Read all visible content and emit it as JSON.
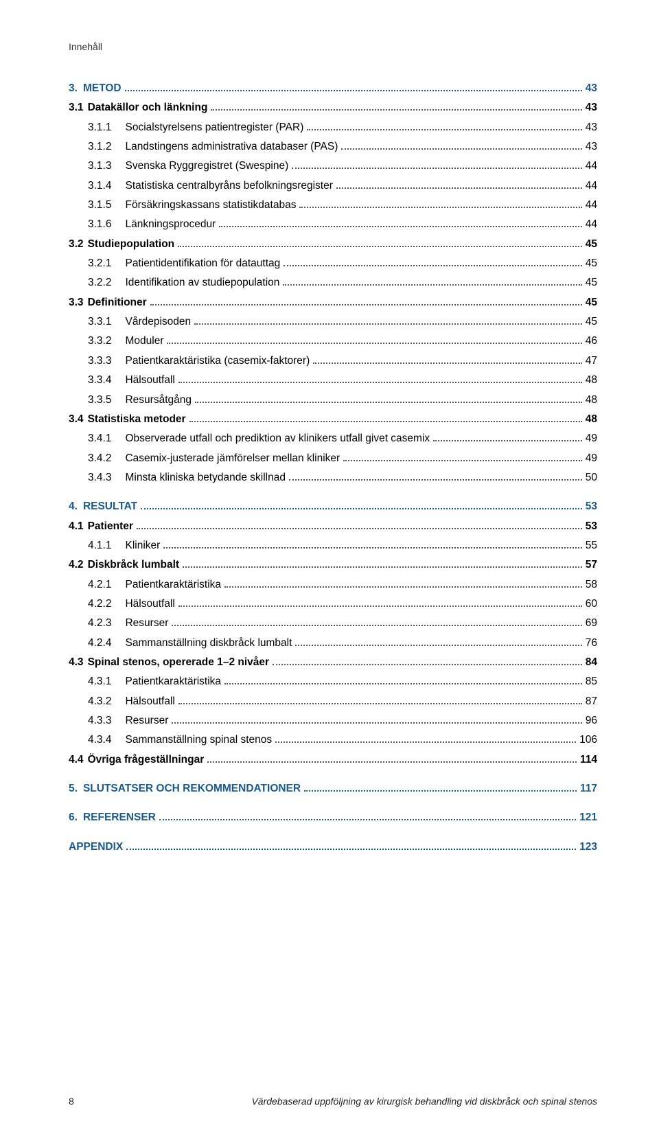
{
  "header": "Innehåll",
  "footer": {
    "pagenum": "8",
    "title": "Värdebaserad uppföljning av kirurgisk behandling vid diskbråck och spinal stenos"
  },
  "colors": {
    "heading": "#1a5a8a",
    "text": "#000000",
    "dots": "#555555",
    "bg": "#ffffff"
  },
  "typography": {
    "body_fontsize": 15.5,
    "footer_fontsize": 14,
    "header_fontsize": 14,
    "line_height": 1.7
  },
  "toc": [
    {
      "level": 1,
      "num": "3.",
      "label": "METOD",
      "page": "43"
    },
    {
      "level": 2,
      "num": "3.1",
      "label": "Datakällor och länkning",
      "page": "43"
    },
    {
      "level": 3,
      "num": "3.1.1",
      "label": "Socialstyrelsens patientregister (PAR)",
      "page": "43"
    },
    {
      "level": 3,
      "num": "3.1.2",
      "label": "Landstingens administrativa databaser (PAS)",
      "page": "43"
    },
    {
      "level": 3,
      "num": "3.1.3",
      "label": "Svenska Ryggregistret (Swespine)",
      "page": "44"
    },
    {
      "level": 3,
      "num": "3.1.4",
      "label": "Statistiska centralbyråns befolkningsregister",
      "page": "44"
    },
    {
      "level": 3,
      "num": "3.1.5",
      "label": "Försäkringskassans statistikdatabas",
      "page": "44"
    },
    {
      "level": 3,
      "num": "3.1.6",
      "label": "Länkningsprocedur",
      "page": "44"
    },
    {
      "level": 2,
      "num": "3.2",
      "label": "Studiepopulation",
      "page": "45"
    },
    {
      "level": 3,
      "num": "3.2.1",
      "label": "Patientidentifikation för datauttag",
      "page": "45"
    },
    {
      "level": 3,
      "num": "3.2.2",
      "label": "Identifikation av studiepopulation",
      "page": "45"
    },
    {
      "level": 2,
      "num": "3.3",
      "label": "Definitioner",
      "page": "45"
    },
    {
      "level": 3,
      "num": "3.3.1",
      "label": "Vårdepisoden",
      "page": "45"
    },
    {
      "level": 3,
      "num": "3.3.2",
      "label": "Moduler",
      "page": "46"
    },
    {
      "level": 3,
      "num": "3.3.3",
      "label": "Patientkaraktäristika (casemix-faktorer)",
      "page": "47"
    },
    {
      "level": 3,
      "num": "3.3.4",
      "label": "Hälsoutfall",
      "page": "48"
    },
    {
      "level": 3,
      "num": "3.3.5",
      "label": "Resursåtgång",
      "page": "48"
    },
    {
      "level": 2,
      "num": "3.4",
      "label": "Statistiska metoder",
      "page": "48"
    },
    {
      "level": 3,
      "num": "3.4.1",
      "label": "Observerade utfall och prediktion av klinikers utfall givet casemix",
      "page": "49"
    },
    {
      "level": 3,
      "num": "3.4.2",
      "label": "Casemix-justerade jämförelser mellan kliniker",
      "page": "49"
    },
    {
      "level": 3,
      "num": "3.4.3",
      "label": "Minsta kliniska betydande skillnad",
      "page": "50"
    },
    {
      "level": 1,
      "num": "4.",
      "label": "RESULTAT",
      "page": "53"
    },
    {
      "level": 2,
      "num": "4.1",
      "label": "Patienter",
      "page": "53"
    },
    {
      "level": 3,
      "num": "4.1.1",
      "label": "Kliniker",
      "page": "55"
    },
    {
      "level": 2,
      "num": "4.2",
      "label": "Diskbråck lumbalt",
      "page": "57"
    },
    {
      "level": 3,
      "num": "4.2.1",
      "label": "Patientkaraktäristika",
      "page": "58"
    },
    {
      "level": 3,
      "num": "4.2.2",
      "label": "Hälsoutfall",
      "page": "60"
    },
    {
      "level": 3,
      "num": "4.2.3",
      "label": "Resurser",
      "page": "69"
    },
    {
      "level": 3,
      "num": "4.2.4",
      "label": "Sammanställning diskbråck lumbalt",
      "page": "76"
    },
    {
      "level": 2,
      "num": "4.3",
      "label": "Spinal stenos, opererade 1–2 nivåer",
      "page": "84"
    },
    {
      "level": 3,
      "num": "4.3.1",
      "label": "Patientkaraktäristika",
      "page": "85"
    },
    {
      "level": 3,
      "num": "4.3.2",
      "label": "Hälsoutfall",
      "page": "87"
    },
    {
      "level": 3,
      "num": "4.3.3",
      "label": "Resurser",
      "page": "96"
    },
    {
      "level": 3,
      "num": "4.3.4",
      "label": "Sammanställning spinal stenos",
      "page": "106"
    },
    {
      "level": 2,
      "num": "4.4",
      "label": "Övriga frågeställningar",
      "page": "114"
    },
    {
      "level": 1,
      "num": "5.",
      "label": "SLUTSATSER OCH REKOMMENDATIONER",
      "page": "117"
    },
    {
      "level": 1,
      "num": "6.",
      "label": "REFERENSER",
      "page": "121"
    },
    {
      "level": 1,
      "num": "",
      "label": "APPENDIX",
      "page": "123"
    }
  ]
}
